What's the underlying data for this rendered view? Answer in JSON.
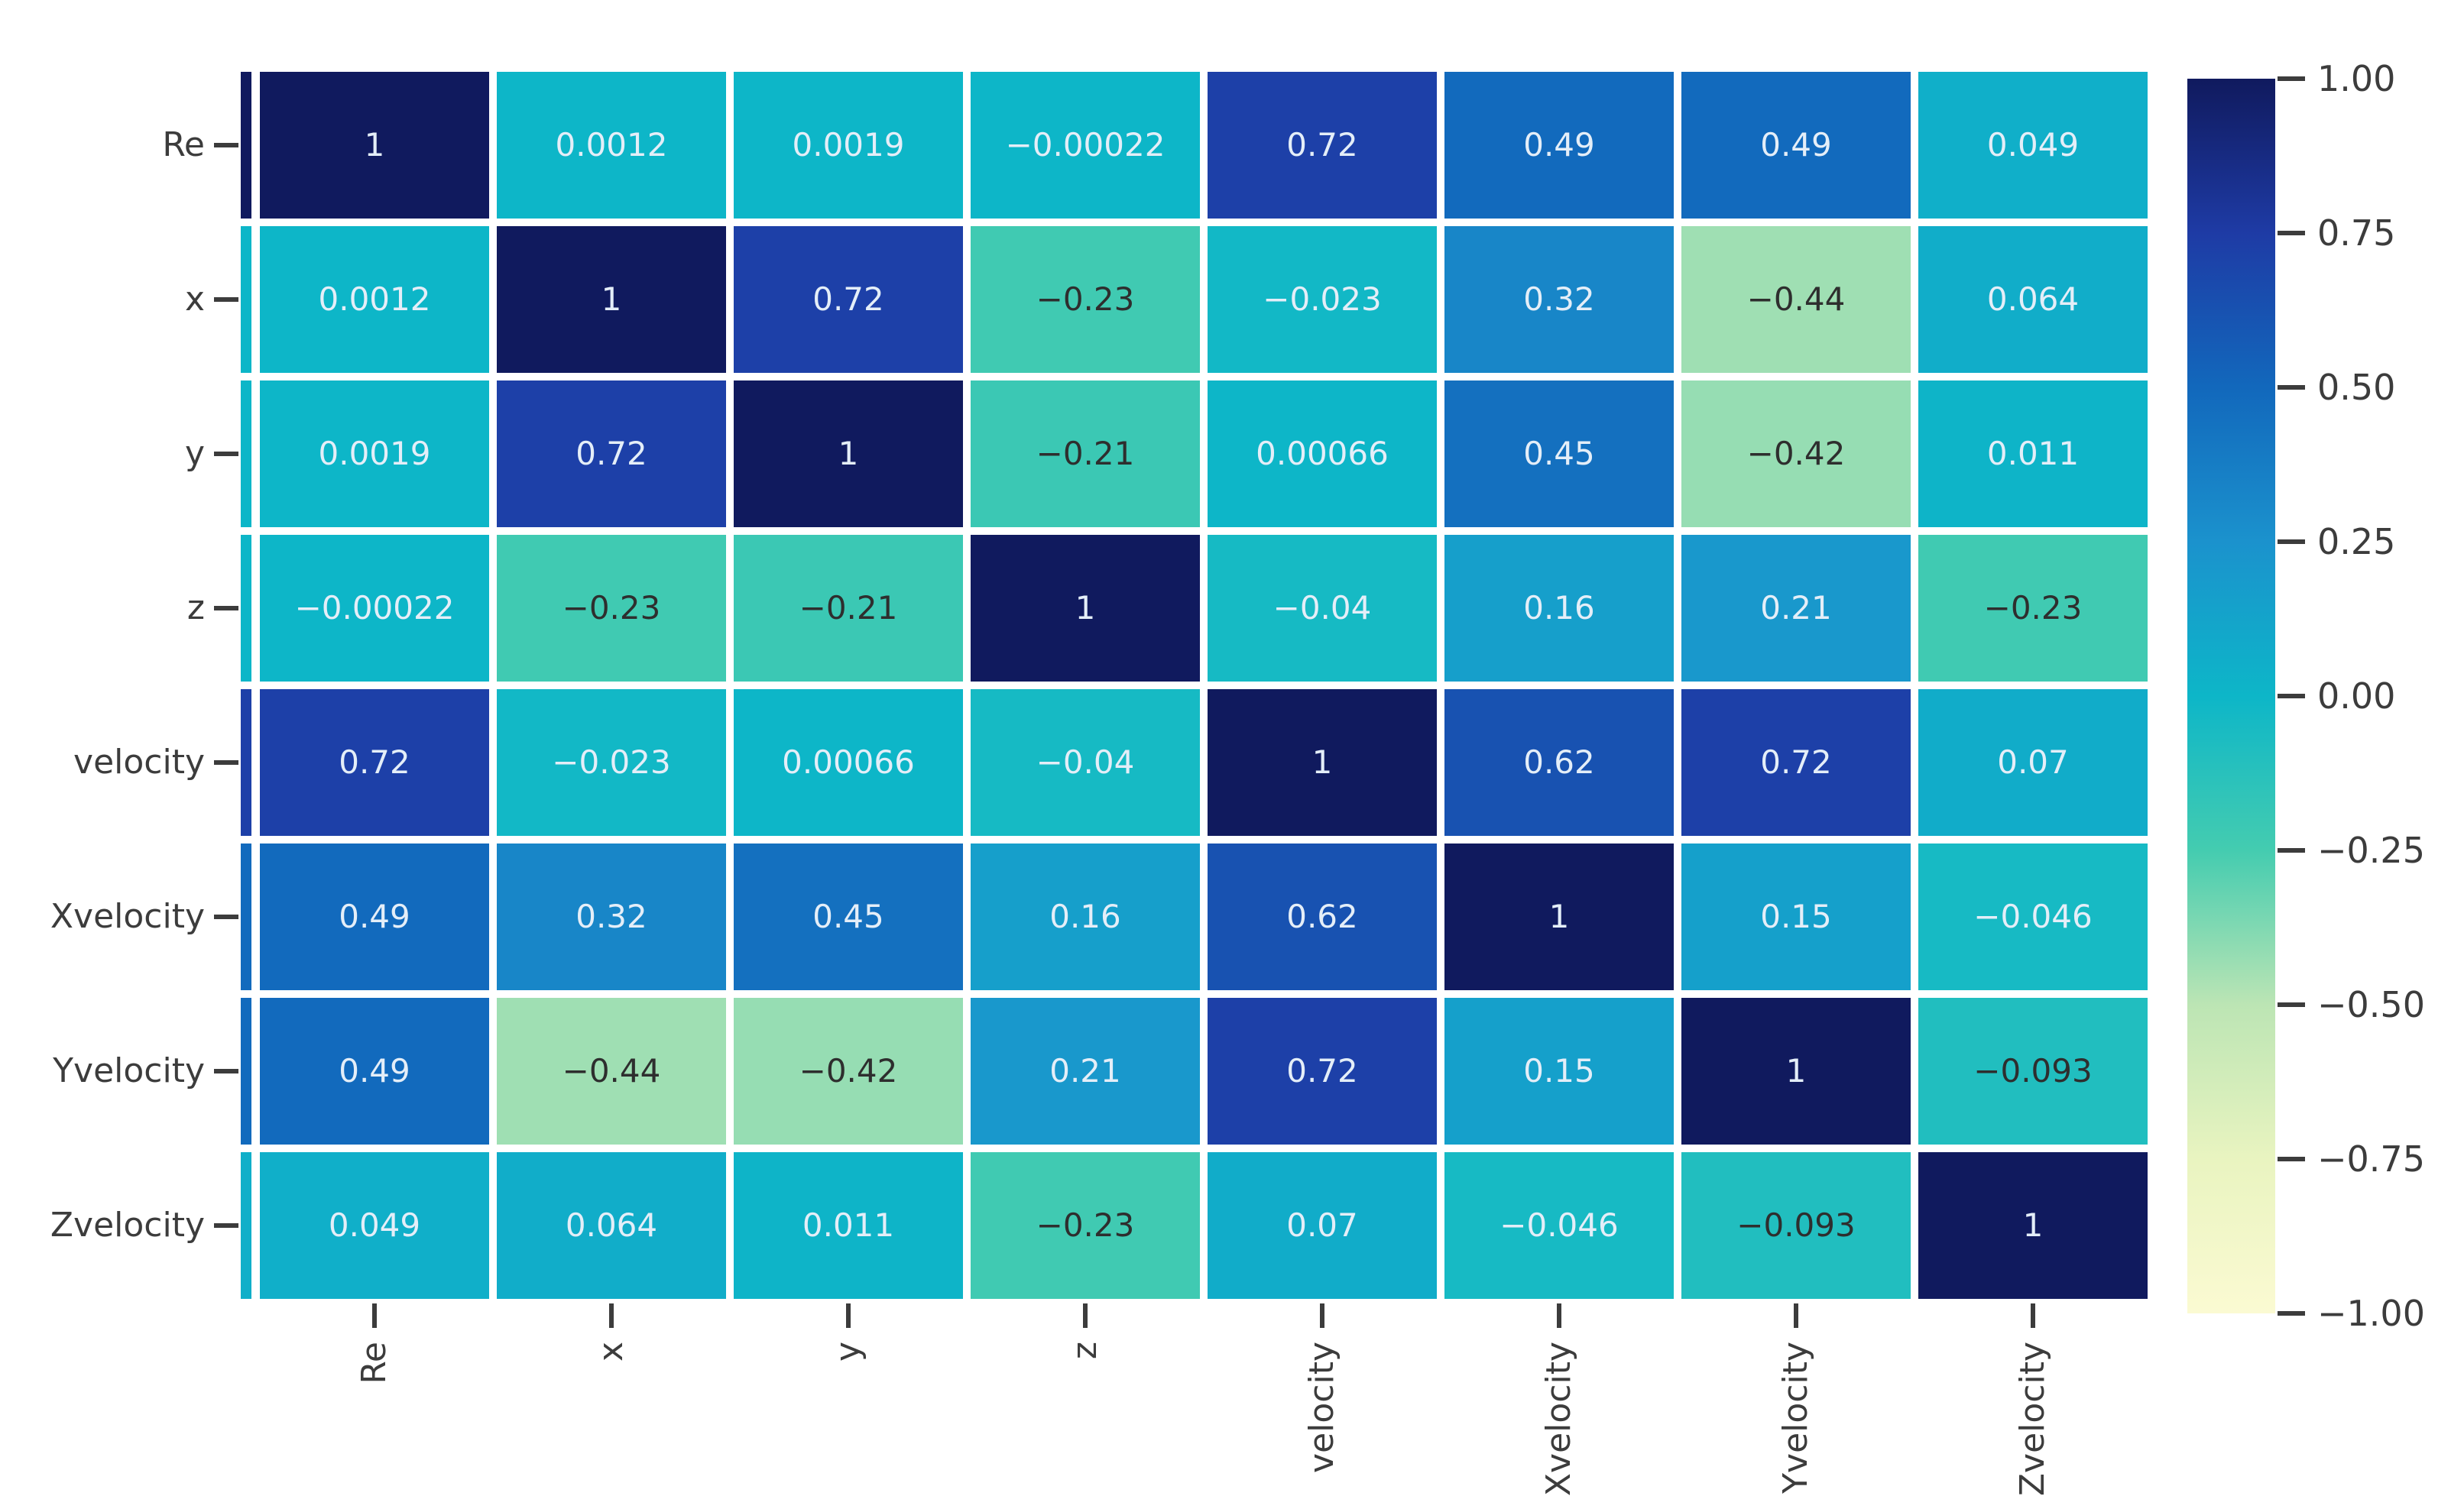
{
  "chart_data": {
    "type": "heatmap",
    "categories": [
      "Re",
      "x",
      "y",
      "z",
      "velocity",
      "Xvelocity",
      "Yvelocity",
      "Zvelocity"
    ],
    "matrix": [
      [
        1,
        0.0012,
        0.0019,
        -0.00022,
        0.72,
        0.49,
        0.49,
        0.049
      ],
      [
        0.0012,
        1,
        0.72,
        -0.23,
        -0.023,
        0.32,
        -0.44,
        0.064
      ],
      [
        0.0019,
        0.72,
        1,
        -0.21,
        0.00066,
        0.45,
        -0.42,
        0.011
      ],
      [
        -0.00022,
        -0.23,
        -0.21,
        1,
        -0.04,
        0.16,
        0.21,
        -0.23
      ],
      [
        0.72,
        -0.023,
        0.00066,
        -0.04,
        1,
        0.62,
        0.72,
        0.07
      ],
      [
        0.49,
        0.32,
        0.45,
        0.16,
        0.62,
        1,
        0.15,
        -0.046
      ],
      [
        0.49,
        -0.44,
        -0.42,
        0.21,
        0.72,
        0.15,
        1,
        -0.093
      ],
      [
        0.049,
        0.064,
        0.011,
        -0.23,
        0.07,
        -0.046,
        -0.093,
        1
      ]
    ],
    "value_format": ".2g",
    "vmin": -1,
    "vmax": 1,
    "grid_on": false,
    "grid_line_color": "#ffffff",
    "axis_label_color": "#3c3c3c",
    "annotation_colors": {
      "light": "#e4eef8",
      "dark": "#2e2e2e"
    },
    "annotation_dark_text_below": -0.05,
    "colormap_stops": [
      {
        "v": 1.0,
        "c": "#101a5e"
      },
      {
        "v": 0.75,
        "c": "#1e3ba5"
      },
      {
        "v": 0.5,
        "c": "#1268bc"
      },
      {
        "v": 0.25,
        "c": "#1b92cd"
      },
      {
        "v": 0.0,
        "c": "#0db6c8"
      },
      {
        "v": -0.25,
        "c": "#44ccb0"
      },
      {
        "v": -0.5,
        "c": "#bce5b4"
      },
      {
        "v": -0.75,
        "c": "#e9f4c0"
      },
      {
        "v": -1.0,
        "c": "#fbfad2"
      }
    ],
    "colorbar": {
      "position": "right",
      "tick_labels": [
        "1.00",
        "0.75",
        "0.50",
        "0.25",
        "0.00",
        "−0.25",
        "−0.50",
        "−0.75",
        "−1.00"
      ]
    }
  }
}
